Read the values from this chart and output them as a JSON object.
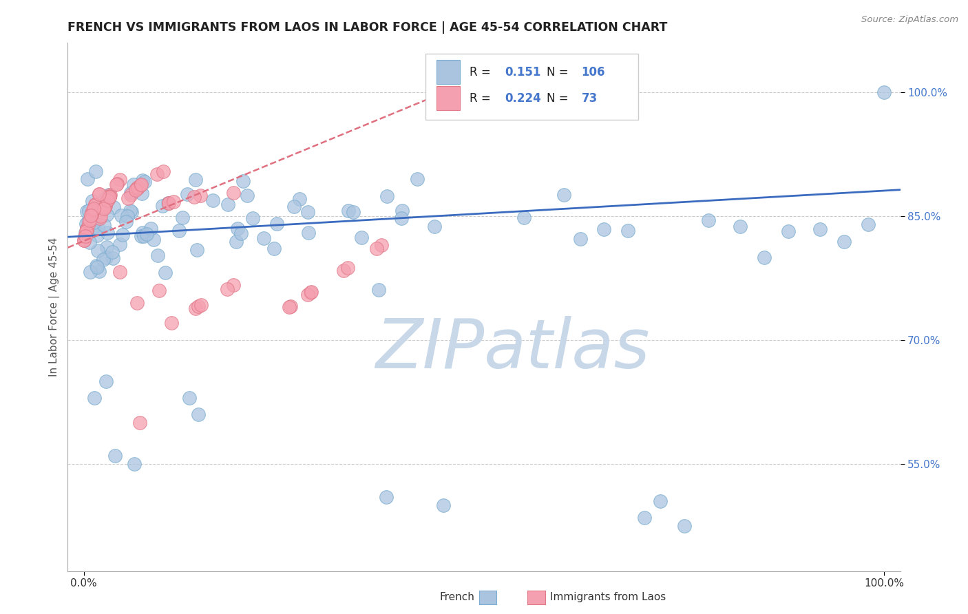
{
  "title": "FRENCH VS IMMIGRANTS FROM LAOS IN LABOR FORCE | AGE 45-54 CORRELATION CHART",
  "source": "Source: ZipAtlas.com",
  "ylabel": "In Labor Force | Age 45-54",
  "yticklabels": [
    "55.0%",
    "70.0%",
    "85.0%",
    "100.0%"
  ],
  "ytick_values": [
    0.55,
    0.7,
    0.85,
    1.0
  ],
  "xlim": [
    -0.02,
    1.02
  ],
  "ylim": [
    0.42,
    1.06
  ],
  "french_R": 0.151,
  "french_N": 106,
  "laos_R": 0.224,
  "laos_N": 73,
  "french_color": "#aac4e0",
  "laos_color": "#f5a0b0",
  "french_edge": "#7aadd0",
  "laos_edge": "#e07888",
  "trendline_french_color": "#3a6bbf",
  "trendline_laos_color": "#e07080",
  "watermark_color": "#dde6f0",
  "background_color": "#ffffff",
  "grid_color": "#cccccc",
  "title_color": "#222222",
  "legend_text_color": "#222222",
  "ytick_color": "#4477cc",
  "xtick_color": "#333333"
}
